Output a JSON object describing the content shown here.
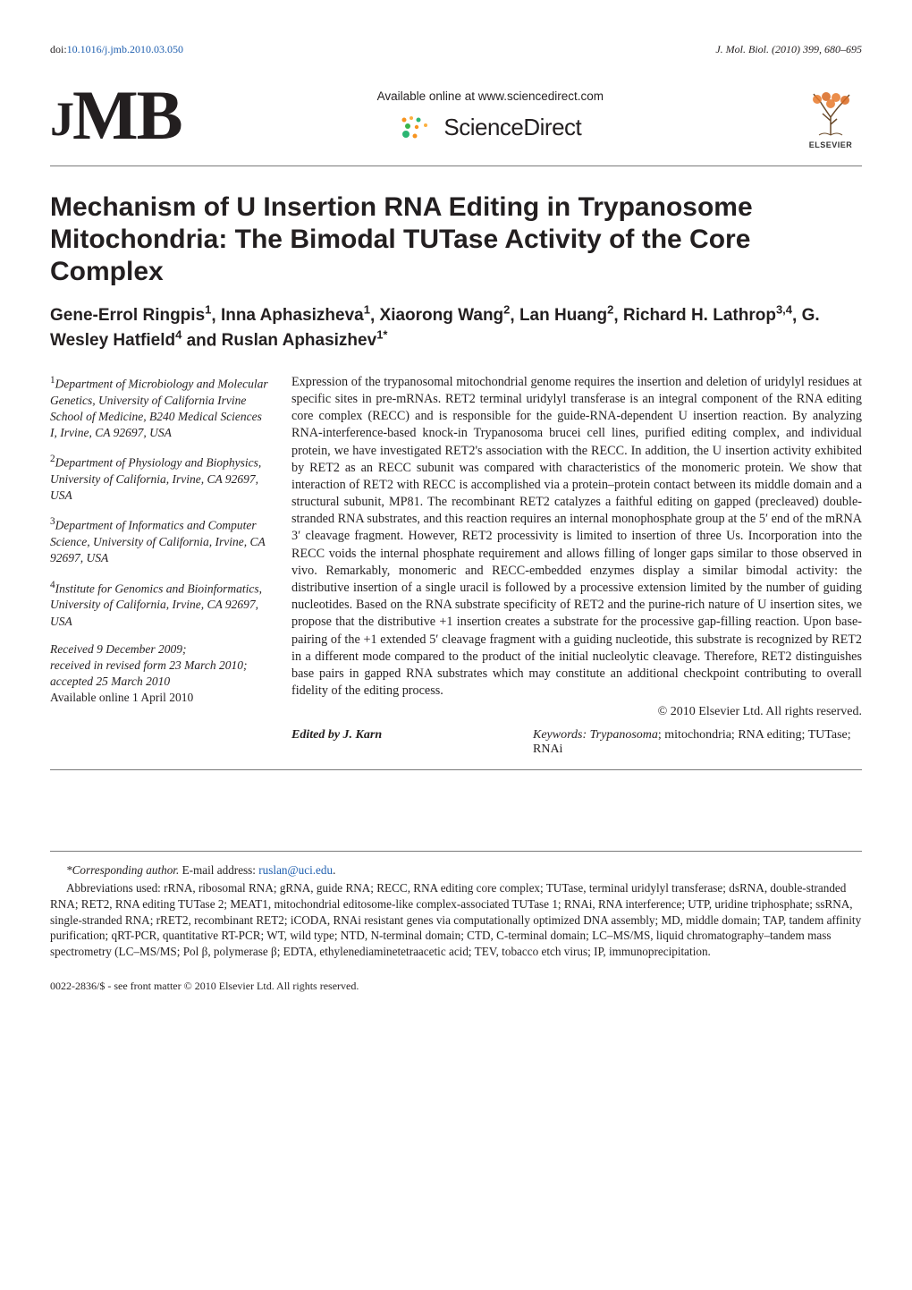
{
  "top": {
    "doi_prefix": "doi:",
    "doi_link": "10.1016/j.jmb.2010.03.050",
    "journal_ref": "J. Mol. Biol. (2010) 399, 680–695"
  },
  "header": {
    "jmb_letters": {
      "j": "J",
      "m": "M",
      "b": "B"
    },
    "available_text": "Available online at www.sciencedirect.com",
    "sciencedirect": "ScienceDirect",
    "elsevier_label": "ELSEVIER",
    "sd_dot_colors": [
      "#f7931e",
      "#f7931e",
      "#fbb040",
      "#2bb673",
      "#39b54a",
      "#fbb040",
      "#2bb673",
      "#f7931e"
    ]
  },
  "title": "Mechanism of U Insertion RNA Editing in Trypanosome Mitochondria: The Bimodal TUTase Activity of the Core Complex",
  "authors": [
    {
      "name": "Gene-Errol Ringpis",
      "sup": "1"
    },
    {
      "name": "Inna Aphasizheva",
      "sup": "1"
    },
    {
      "name": "Xiaorong Wang",
      "sup": "2"
    },
    {
      "name": "Lan Huang",
      "sup": "2"
    },
    {
      "name": "Richard H. Lathrop",
      "sup": "3,4"
    },
    {
      "name": "G. Wesley Hatfield",
      "sup": "4"
    },
    {
      "name": "Ruslan Aphasizhev",
      "sup": "1*",
      "last": true
    }
  ],
  "affiliations": [
    {
      "num": "1",
      "text": "Department of Microbiology and Molecular Genetics, University of California Irvine School of Medicine, B240 Medical Sciences I, Irvine, CA 92697, USA"
    },
    {
      "num": "2",
      "text": "Department of Physiology and Biophysics, University of California, Irvine, CA 92697, USA"
    },
    {
      "num": "3",
      "text": "Department of Informatics and Computer Science, University of California, Irvine, CA 92697, USA"
    },
    {
      "num": "4",
      "text": "Institute for Genomics and Bioinformatics, University of California, Irvine, CA 92697, USA"
    }
  ],
  "dates": {
    "received": "Received 9 December 2009;",
    "revised": "received in revised form 23 March 2010;",
    "accepted": "accepted 25 March 2010",
    "online": "Available online 1 April 2010"
  },
  "abstract": "Expression of the trypanosomal mitochondrial genome requires the insertion and deletion of uridylyl residues at specific sites in pre-mRNAs. RET2 terminal uridylyl transferase is an integral component of the RNA editing core complex (RECC) and is responsible for the guide-RNA-dependent U insertion reaction. By analyzing RNA-interference-based knock-in Trypanosoma brucei cell lines, purified editing complex, and individual protein, we have investigated RET2's association with the RECC. In addition, the U insertion activity exhibited by RET2 as an RECC subunit was compared with characteristics of the monomeric protein. We show that interaction of RET2 with RECC is accomplished via a protein–protein contact between its middle domain and a structural subunit, MP81. The recombinant RET2 catalyzes a faithful editing on gapped (precleaved) double-stranded RNA substrates, and this reaction requires an internal monophosphate group at the 5′ end of the mRNA 3′ cleavage fragment. However, RET2 processivity is limited to insertion of three Us. Incorporation into the RECC voids the internal phosphate requirement and allows filling of longer gaps similar to those observed in vivo. Remarkably, monomeric and RECC-embedded enzymes display a similar bimodal activity: the distributive insertion of a single uracil is followed by a processive extension limited by the number of guiding nucleotides. Based on the RNA substrate specificity of RET2 and the purine-rich nature of U insertion sites, we propose that the distributive +1 insertion creates a substrate for the processive gap-filling reaction. Upon base-pairing of the +1 extended 5′ cleavage fragment with a guiding nucleotide, this substrate is recognized by RET2 in a different mode compared to the product of the initial nucleolytic cleavage. Therefore, RET2 distinguishes base pairs in gapped RNA substrates which may constitute an additional checkpoint contributing to overall fidelity of the editing process.",
  "copyright": "© 2010 Elsevier Ltd. All rights reserved.",
  "edited_by": "Edited by J. Karn",
  "keywords_label": "Keywords: ",
  "keywords_ital": "Trypanosoma",
  "keywords_rest": "; mitochondria; RNA editing; TUTase; RNAi",
  "footnotes": {
    "corr_label": "*Corresponding author.",
    "corr_text": " E-mail address: ",
    "corr_email": "ruslan@uci.edu",
    "abbrev": "Abbreviations used: rRNA, ribosomal RNA; gRNA, guide RNA; RECC, RNA editing core complex; TUTase, terminal uridylyl transferase; dsRNA, double-stranded RNA; RET2, RNA editing TUTase 2; MEAT1, mitochondrial editosome-like complex-associated TUTase 1; RNAi, RNA interference; UTP, uridine triphosphate; ssRNA, single-stranded RNA; rRET2, recombinant RET2; iCODA, RNAi resistant genes via computationally optimized DNA assembly; MD, middle domain; TAP, tandem affinity purification; qRT-PCR, quantitative RT-PCR; WT, wild type; NTD, N-terminal domain; CTD, C-terminal domain; LC–MS/MS, liquid chromatography–tandem mass spectrometry (LC–MS/MS; Pol β, polymerase β; EDTA, ethylenediaminetetraacetic acid; TEV, tobacco etch virus; IP, immunoprecipitation."
  },
  "bottom": "0022-2836/$ - see front matter © 2010 Elsevier Ltd. All rights reserved.",
  "colors": {
    "text": "#231f20",
    "link": "#2060b0",
    "rule": "#7a7a7a",
    "elsevier_orange": "#e8792a"
  }
}
